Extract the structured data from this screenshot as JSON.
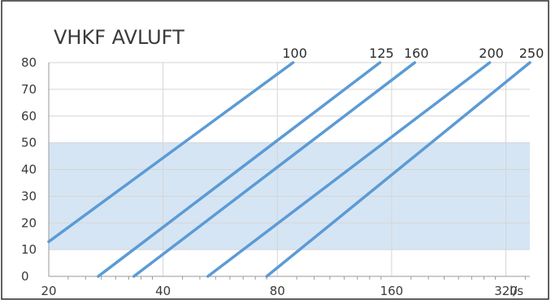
{
  "chart_data": {
    "type": "line",
    "title": "VHKF AVLUFT",
    "x_unit": "l/s",
    "x_scale": "log2",
    "xlim": [
      20,
      370
    ],
    "ylim": [
      0,
      80
    ],
    "x_ticks": [
      20,
      40,
      80,
      160,
      320
    ],
    "x_tick_labels": [
      "20",
      "40",
      "80",
      "160",
      "320"
    ],
    "y_ticks": [
      0,
      10,
      20,
      30,
      40,
      50,
      60,
      70,
      80
    ],
    "y_tick_labels": [
      "0",
      "10",
      "20",
      "30",
      "40",
      "50",
      "60",
      "70",
      "80"
    ],
    "grid": true,
    "shaded_band": {
      "y_from": 10,
      "y_to": 50,
      "color": "#d6e5f4"
    },
    "line_color": "#5b9bd5",
    "series": [
      {
        "name": "100",
        "points": [
          [
            20,
            13
          ],
          [
            88,
            80
          ]
        ]
      },
      {
        "name": "125",
        "points": [
          [
            27,
            0
          ],
          [
            149,
            80
          ]
        ]
      },
      {
        "name": "160",
        "points": [
          [
            33.5,
            0
          ],
          [
            184,
            80
          ]
        ]
      },
      {
        "name": "200",
        "points": [
          [
            52.5,
            0
          ],
          [
            290,
            80
          ]
        ]
      },
      {
        "name": "250",
        "points": [
          [
            75,
            0
          ],
          [
            370,
            80
          ]
        ]
      }
    ]
  }
}
